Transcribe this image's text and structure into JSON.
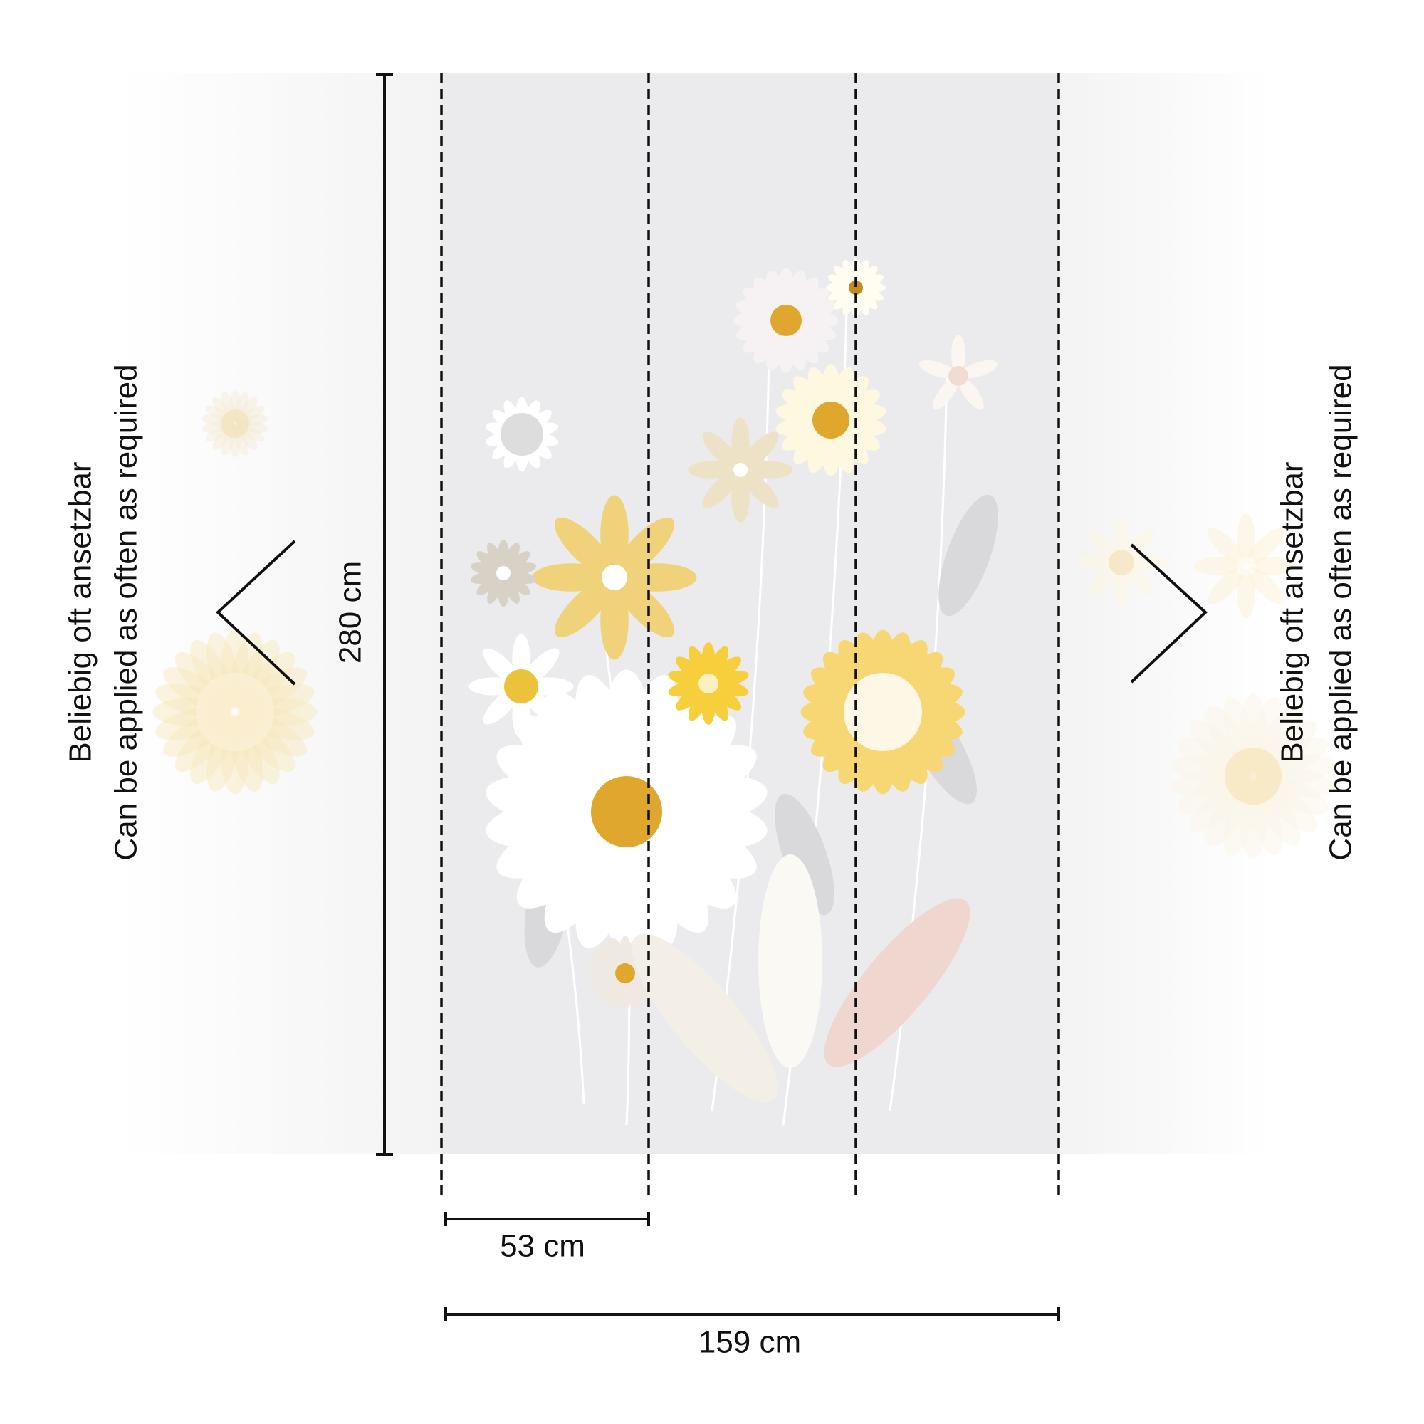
{
  "dimensions": {
    "height": "280 cm",
    "panel_width": "53 cm",
    "total_width": "159 cm"
  },
  "left_note": {
    "line1": "Beliebig oft ansetzbar",
    "line2": "Can be applied as often as required"
  },
  "right_note": {
    "line1": "Beliebig oft ansetzbar",
    "line2": "Can be applied as often as required"
  }
}
